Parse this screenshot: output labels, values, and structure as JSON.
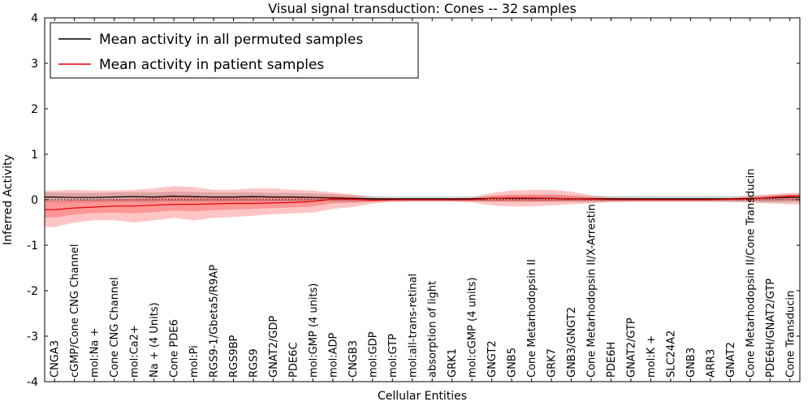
{
  "chart_data": {
    "type": "line",
    "title": "Visual signal transduction: Cones -- 32 samples",
    "xlabel": "Cellular Entities",
    "ylabel": "Inferred Activity",
    "ylim": [
      -4,
      4
    ],
    "yticks": [
      -4,
      -3,
      -2,
      -1,
      0,
      1,
      2,
      3,
      4
    ],
    "grid": false,
    "zero_line_dotted": true,
    "legend_position": "upper left",
    "categories": [
      "CNGA3",
      "cGMP/Cone CNG Channel",
      "mol:Na +",
      "Cone CNG Channel",
      "mol:Ca2+",
      "Na + (4 Units)",
      "Cone PDE6",
      "mol:Pi",
      "RGS9-1/Gbeta5/R9AP",
      "RGS9BP",
      "RGS9",
      "GNAT2/GDP",
      "PDE6C",
      "mol:GMP (4 units)",
      "mol:ADP",
      "CNGB3",
      "mol:GDP",
      "mol:GTP",
      "mol:all-trans-retinal",
      "absorption of light",
      "GRK1",
      "mol:cGMP (4 units)",
      "GNGT2",
      "GNB5",
      "Cone Metarhodopsin II",
      "GRK7",
      "GNB3/GNGT2",
      "Cone Metarhodopsin II/X-Arrestin",
      "PDE6H",
      "GNAT2/GTP",
      "mol:K +",
      "SLC24A2",
      "GNB3",
      "ARR3",
      "GNAT2",
      "Cone Metarhodopsin II/Cone Transducin",
      "PDE6H/GNAT2/GTP",
      "Cone Transducin"
    ],
    "series": [
      {
        "name": "Mean activity in all permuted samples",
        "color": "#000000",
        "band_color": "#999999",
        "values": [
          0.06,
          0.05,
          0.05,
          0.06,
          0.07,
          0.06,
          0.08,
          0.07,
          0.06,
          0.06,
          0.07,
          0.06,
          0.06,
          0.05,
          0.04,
          0.03,
          0.02,
          0.02,
          0.02,
          0.02,
          0.02,
          0.02,
          0.03,
          0.03,
          0.03,
          0.03,
          0.02,
          0.02,
          0.02,
          0.02,
          0.02,
          0.02,
          0.02,
          0.02,
          0.02,
          0.03,
          0.04,
          0.05
        ],
        "band_upper": [
          0.16,
          0.15,
          0.15,
          0.16,
          0.17,
          0.16,
          0.18,
          0.17,
          0.16,
          0.16,
          0.16,
          0.15,
          0.15,
          0.14,
          0.12,
          0.1,
          0.08,
          0.07,
          0.07,
          0.07,
          0.07,
          0.07,
          0.08,
          0.09,
          0.09,
          0.09,
          0.08,
          0.08,
          0.08,
          0.08,
          0.08,
          0.08,
          0.08,
          0.08,
          0.08,
          0.09,
          0.1,
          0.12
        ],
        "band_lower": [
          -0.06,
          -0.06,
          -0.06,
          -0.05,
          -0.05,
          -0.05,
          -0.04,
          -0.04,
          -0.04,
          -0.04,
          -0.04,
          -0.04,
          -0.04,
          -0.04,
          -0.04,
          -0.05,
          -0.05,
          -0.04,
          -0.04,
          -0.04,
          -0.04,
          -0.04,
          -0.04,
          -0.04,
          -0.04,
          -0.04,
          -0.05,
          -0.05,
          -0.05,
          -0.05,
          -0.05,
          -0.05,
          -0.05,
          -0.05,
          -0.05,
          -0.05,
          -0.06,
          -0.06
        ]
      },
      {
        "name": "Mean activity in patient samples",
        "color": "#e60000",
        "band_color": "#ff4040",
        "values": [
          -0.22,
          -0.18,
          -0.16,
          -0.14,
          -0.14,
          -0.12,
          -0.1,
          -0.1,
          -0.09,
          -0.08,
          -0.08,
          -0.07,
          -0.06,
          -0.04,
          0.02,
          0.01,
          -0.01,
          0.0,
          0.0,
          0.0,
          0.0,
          0.0,
          0.03,
          0.04,
          0.04,
          0.03,
          0.02,
          0.01,
          0.0,
          0.0,
          0.0,
          0.0,
          0.0,
          0.0,
          0.01,
          0.02,
          0.05,
          0.08
        ],
        "band_upper": [
          0.2,
          0.22,
          0.2,
          0.2,
          0.22,
          0.25,
          0.3,
          0.28,
          0.22,
          0.22,
          0.25,
          0.25,
          0.22,
          0.2,
          0.16,
          0.12,
          0.05,
          0.03,
          0.03,
          0.03,
          0.03,
          0.05,
          0.15,
          0.2,
          0.22,
          0.22,
          0.18,
          0.1,
          0.05,
          0.04,
          0.03,
          0.03,
          0.03,
          0.03,
          0.04,
          0.08,
          0.12,
          0.15
        ],
        "band_lower": [
          -0.6,
          -0.5,
          -0.45,
          -0.45,
          -0.5,
          -0.45,
          -0.4,
          -0.45,
          -0.4,
          -0.38,
          -0.35,
          -0.32,
          -0.3,
          -0.28,
          -0.2,
          -0.16,
          -0.08,
          -0.05,
          -0.04,
          -0.04,
          -0.04,
          -0.06,
          -0.12,
          -0.15,
          -0.15,
          -0.12,
          -0.1,
          -0.08,
          -0.05,
          -0.04,
          -0.04,
          -0.04,
          -0.04,
          -0.04,
          -0.05,
          -0.06,
          -0.08,
          -0.1
        ]
      }
    ],
    "legend": {
      "entries": [
        {
          "label": "Mean activity in all permuted samples",
          "color": "#000000"
        },
        {
          "label": "Mean activity in patient samples",
          "color": "#e60000"
        }
      ]
    }
  }
}
